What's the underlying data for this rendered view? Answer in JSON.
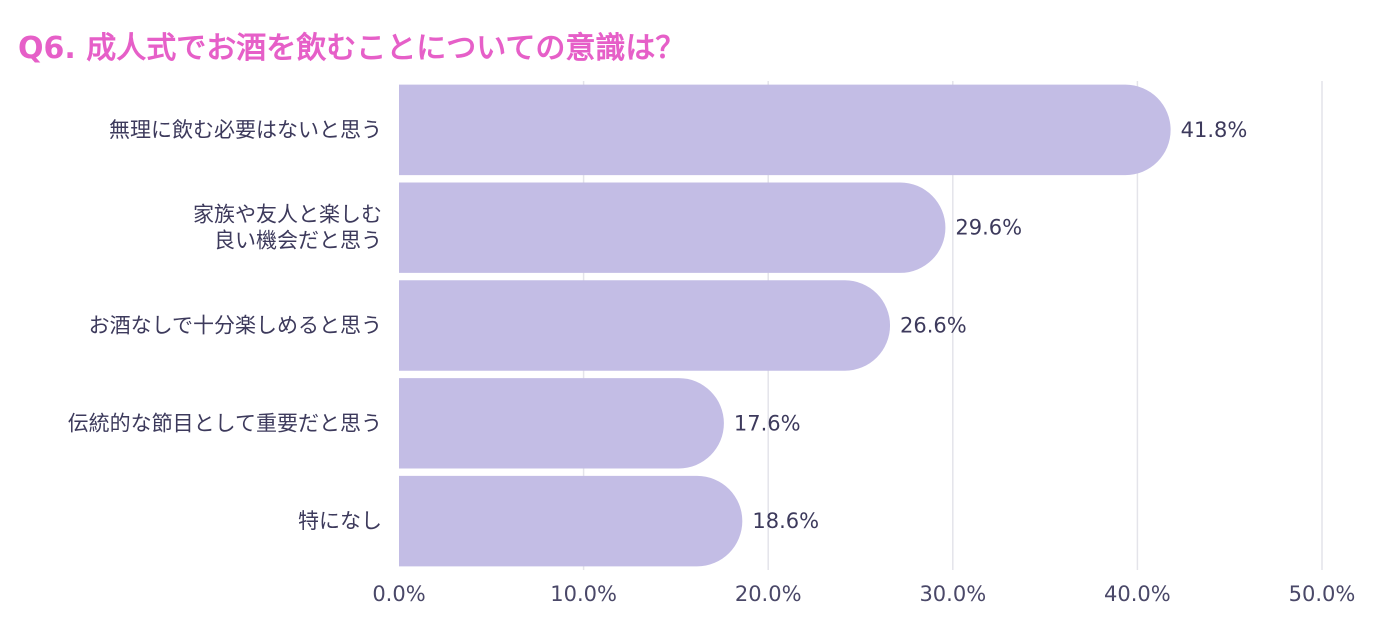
{
  "chart_data": {
    "type": "bar",
    "orientation": "horizontal",
    "title": "Q6. 成人式でお酒を飲むことについての意識は？",
    "categories": [
      [
        "無理に飲む必要はないと思う"
      ],
      [
        "家族や友人と楽しむ",
        "良い機会だと思う"
      ],
      [
        "お酒なしで十分楽しめると思う"
      ],
      [
        "伝統的な節目として重要だと思う"
      ],
      [
        "特になし"
      ]
    ],
    "values": [
      41.8,
      29.6,
      26.6,
      17.6,
      18.6
    ],
    "value_labels": [
      "41.8%",
      "29.6%",
      "26.6%",
      "17.6%",
      "18.6%"
    ],
    "xlim": [
      0,
      50
    ],
    "ticks": [
      0,
      10,
      20,
      30,
      40,
      50
    ],
    "tick_labels": [
      "0.0%",
      "10.0%",
      "20.0%",
      "30.0%",
      "40.0%",
      "50.0%"
    ],
    "grid": true,
    "bar_color": "#c3bde5",
    "title_color": "#e65fc8"
  }
}
